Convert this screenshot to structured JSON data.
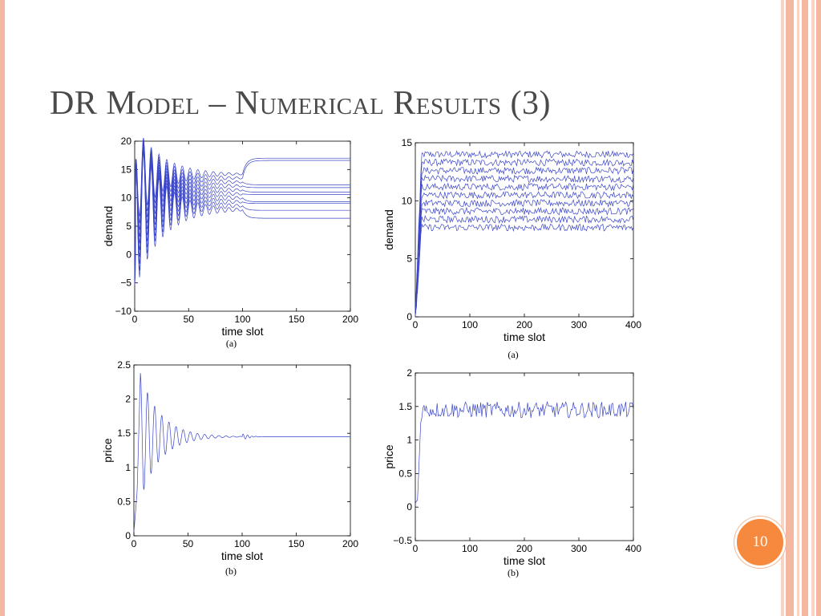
{
  "slide": {
    "title": "DR Model – Numerical Results (3)",
    "page_number": "10",
    "colors": {
      "line": "#3a45c8",
      "badge": "#f7893f",
      "border": "#f4b7a0"
    }
  },
  "chart_data": [
    {
      "id": "top-left",
      "type": "line",
      "caption": "(a)",
      "xlabel": "time slot",
      "ylabel": "demand",
      "xlim": [
        0,
        200
      ],
      "ylim": [
        -10,
        20
      ],
      "xticks": [
        0,
        50,
        100,
        150,
        200
      ],
      "yticks": [
        -10,
        -5,
        0,
        5,
        10,
        15,
        20
      ],
      "ytick_labels": [
        "−10",
        "−5",
        "0",
        "5",
        "10",
        "15",
        "20"
      ],
      "series_count": 10,
      "series": [
        {
          "values_at_t0_to_100": 14.2,
          "values_after_100": 17.0
        },
        {
          "values_at_t0_to_100": 13.5,
          "values_after_100": 16.6
        },
        {
          "values_at_t0_to_100": 12.8,
          "values_after_100": 12.3
        },
        {
          "values_at_t0_to_100": 12.1,
          "values_after_100": 11.8
        },
        {
          "values_at_t0_to_100": 11.4,
          "values_after_100": 11.0
        },
        {
          "values_at_t0_to_100": 10.7,
          "values_after_100": 10.6
        },
        {
          "values_at_t0_to_100": 10.0,
          "values_after_100": 9.3
        },
        {
          "values_at_t0_to_100": 9.3,
          "values_after_100": 9.0
        },
        {
          "values_at_t0_to_100": 8.6,
          "values_after_100": 7.8
        },
        {
          "values_at_t0_to_100": 7.9,
          "values_after_100": 6.4
        }
      ],
      "note": "damped oscillation from t=0 settling by t≈100, regime change at t=100"
    },
    {
      "id": "top-right",
      "type": "line",
      "caption": "(a)",
      "xlabel": "time slot",
      "ylabel": "demand",
      "xlim": [
        0,
        400
      ],
      "ylim": [
        0,
        15
      ],
      "xticks": [
        0,
        100,
        200,
        300,
        400
      ],
      "yticks": [
        0,
        5,
        10,
        15
      ],
      "ytick_labels": [
        "0",
        "5",
        "10",
        "15"
      ],
      "series_count": 10,
      "series_levels": [
        14.0,
        13.3,
        12.6,
        11.9,
        11.2,
        10.5,
        9.8,
        9.1,
        8.4,
        7.7
      ],
      "noise_amplitude": 0.3
    },
    {
      "id": "bottom-left",
      "type": "line",
      "caption": "(b)",
      "xlabel": "time slot",
      "ylabel": "price",
      "xlim": [
        0,
        200
      ],
      "ylim": [
        0,
        2.5
      ],
      "xticks": [
        0,
        50,
        100,
        150,
        200
      ],
      "yticks": [
        0,
        0.5,
        1,
        1.5,
        2,
        2.5
      ],
      "ytick_labels": [
        "0",
        "0.5",
        "1",
        "1.5",
        "2",
        "2.5"
      ],
      "peak": {
        "x": 6,
        "y": 2.38
      },
      "trough": {
        "x": 9,
        "y": 0.68
      },
      "steady_value": 1.45
    },
    {
      "id": "bottom-right",
      "type": "line",
      "caption": "(b)",
      "xlabel": "time slot",
      "ylabel": "price",
      "xlim": [
        0,
        400
      ],
      "ylim": [
        -0.5,
        2
      ],
      "xticks": [
        0,
        100,
        200,
        300,
        400
      ],
      "yticks": [
        -0.5,
        0,
        0.5,
        1,
        1.5,
        2
      ],
      "ytick_labels": [
        "−0.5",
        "0",
        "0.5",
        "1",
        "1.5",
        "2"
      ],
      "steady_value": 1.45,
      "noise_amplitude": 0.12
    }
  ]
}
